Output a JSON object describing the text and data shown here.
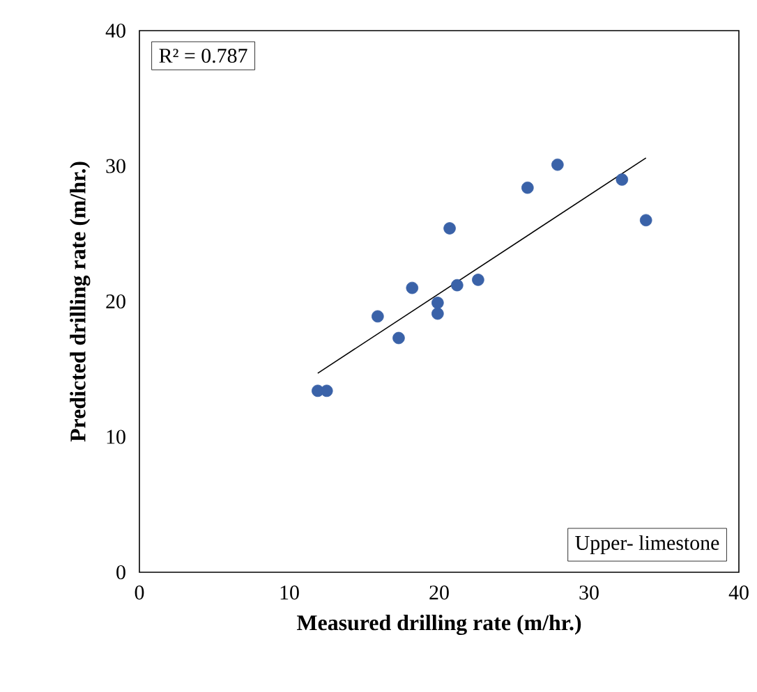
{
  "chart_data": {
    "type": "scatter",
    "xlabel": "Measured drilling rate (m/hr.)",
    "ylabel": "Predicted drilling rate (m/hr.)",
    "xlim": [
      0,
      40
    ],
    "ylim": [
      0,
      40
    ],
    "xticks": [
      0,
      10,
      20,
      30,
      40
    ],
    "yticks": [
      0,
      10,
      20,
      30,
      40
    ],
    "grid": false,
    "annotations": [
      "R² = 0.787",
      "Upper- limestone"
    ],
    "series": [
      {
        "color": "#3a62a8",
        "marker": "circle",
        "x": [
          11.9,
          12.5,
          15.9,
          17.3,
          18.2,
          19.9,
          19.9,
          20.7,
          21.2,
          22.6,
          25.9,
          27.9,
          32.2,
          33.8
        ],
        "values": [
          13.4,
          13.4,
          18.9,
          17.3,
          21.0,
          19.9,
          19.1,
          25.4,
          21.2,
          21.6,
          28.4,
          30.1,
          29.0,
          26.0
        ]
      },
      {
        "type": "line",
        "color": "#000000",
        "marker": "none",
        "line_style": "solid",
        "x": [
          11.9,
          33.8
        ],
        "values": [
          14.7,
          30.6
        ]
      }
    ]
  }
}
